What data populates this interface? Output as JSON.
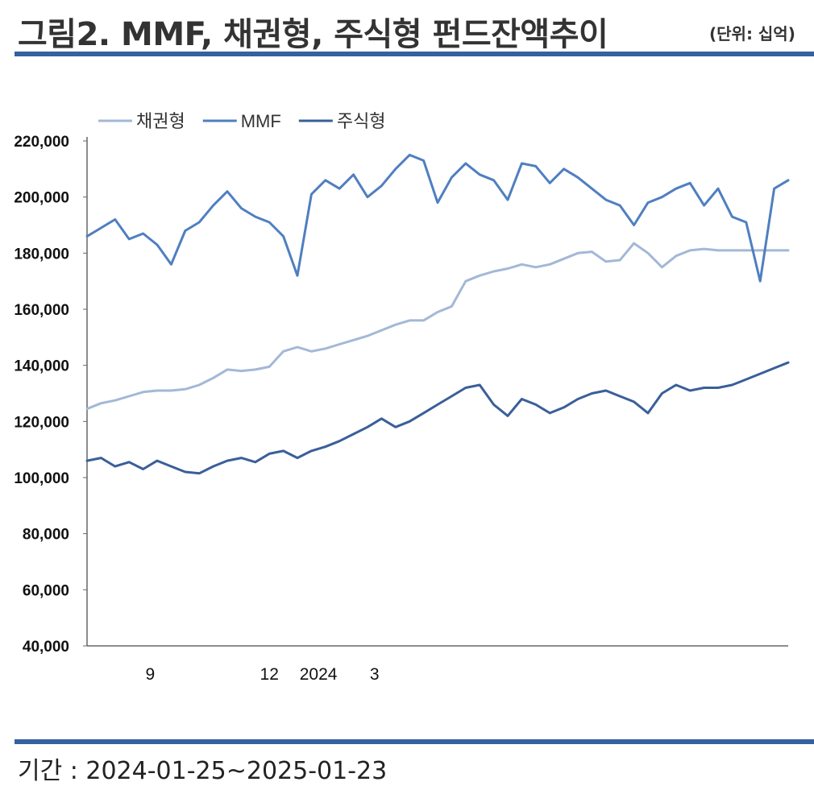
{
  "header": {
    "title": "그림2. MMF, 채권형, 주식형 펀드잔액추이",
    "unit": "(단위: 십억)"
  },
  "footer": {
    "period": "기간 : 2024-01-25~2025-01-23"
  },
  "chart_data": {
    "type": "line",
    "title": "",
    "xlabel": "",
    "ylabel": "",
    "ylim": [
      40000,
      220000
    ],
    "yticks": [
      "220,000",
      "200,000",
      "180,000",
      "160,000",
      "140,000",
      "120,000",
      "100,000",
      "80,000",
      "60,000",
      "40,000"
    ],
    "ytick_values": [
      220000,
      200000,
      180000,
      160000,
      140000,
      120000,
      100000,
      80000,
      60000,
      40000
    ],
    "xlim": [
      0,
      100
    ],
    "xticks": [
      {
        "label": "9",
        "x": 9
      },
      {
        "label": "12",
        "x": 26
      },
      {
        "label": "2024",
        "x": 33
      },
      {
        "label": "3",
        "x": 41
      }
    ],
    "legend": "top-left",
    "grid": false,
    "x": [
      0,
      2,
      4,
      6,
      8,
      10,
      12,
      14,
      16,
      18,
      20,
      22,
      24,
      26,
      28,
      30,
      32,
      34,
      36,
      38,
      40,
      42,
      44,
      46,
      48,
      50,
      52,
      54,
      56,
      58,
      60,
      62,
      64,
      66,
      68,
      70,
      72,
      74,
      76,
      78,
      80,
      82,
      84,
      86,
      88,
      90,
      92,
      94,
      96,
      98,
      100
    ],
    "series": [
      {
        "name": "채권형",
        "color": "#a3b8d6",
        "values": [
          124500,
          126500,
          127500,
          129000,
          130500,
          131000,
          131000,
          131500,
          133000,
          135500,
          138500,
          138000,
          138500,
          139500,
          145000,
          146500,
          145000,
          146000,
          147500,
          149000,
          150500,
          152500,
          154500,
          156000,
          156000,
          159000,
          161000,
          170000,
          172000,
          173500,
          174500,
          176000,
          175000,
          176000,
          178000,
          180000,
          180500,
          177000,
          177500,
          183500,
          180000,
          175000,
          179000,
          181000,
          181500,
          181000,
          181000,
          181000,
          181000,
          181000,
          181000
        ]
      },
      {
        "name": "MMF",
        "color": "#4f7fc0",
        "values": [
          186000,
          189000,
          192000,
          185000,
          187000,
          183000,
          176000,
          188000,
          191000,
          197000,
          202000,
          196000,
          193000,
          191000,
          186000,
          172000,
          201000,
          206000,
          203000,
          208000,
          200000,
          204000,
          210000,
          215000,
          213000,
          198000,
          207000,
          212000,
          208000,
          206000,
          199000,
          212000,
          211000,
          205000,
          210000,
          207000,
          203000,
          199000,
          197000,
          190000,
          198000,
          200000,
          203000,
          205000,
          197000,
          203000,
          193000,
          191000,
          170000,
          203000,
          206000
        ]
      },
      {
        "name": "주식형",
        "color": "#3a5f99",
        "values": [
          106000,
          107000,
          104000,
          105500,
          103000,
          106000,
          104000,
          102000,
          101500,
          104000,
          106000,
          107000,
          105500,
          108500,
          109500,
          107000,
          109500,
          111000,
          113000,
          115500,
          118000,
          121000,
          118000,
          120000,
          123000,
          126000,
          129000,
          132000,
          133000,
          126000,
          122000,
          128000,
          126000,
          123000,
          125000,
          128000,
          130000,
          131000,
          129000,
          127000,
          123000,
          130000,
          133000,
          131000,
          132000,
          132000,
          133000,
          135000,
          137000,
          139000,
          141000
        ]
      }
    ]
  }
}
